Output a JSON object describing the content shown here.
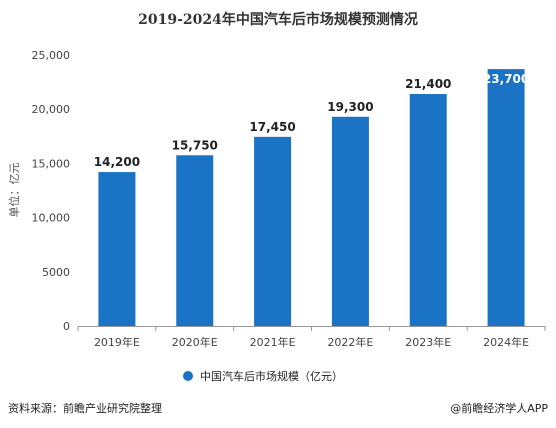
{
  "chart_data": {
    "type": "bar",
    "title": "2019-2024年中国汽车后市场规模预测情况",
    "ylabel": "单位：亿元",
    "xlabel": "",
    "categories": [
      "2019年E",
      "2020年E",
      "2021年E",
      "2022年E",
      "2023年E",
      "2024年E"
    ],
    "series": [
      {
        "name": "中国汽车后市场规模（亿元）",
        "values": [
          14200,
          15750,
          17450,
          19300,
          21400,
          23700
        ]
      }
    ],
    "data_labels": [
      "14,200",
      "15,750",
      "17,450",
      "19,300",
      "21,400",
      "23,700"
    ],
    "ylim": [
      0,
      25000
    ],
    "yticks": [
      0,
      5000,
      10000,
      15000,
      20000,
      25000
    ],
    "ytick_labels": [
      "0",
      "5000",
      "10,000",
      "15,000",
      "20,000",
      "25,000"
    ],
    "grid": false,
    "legend_position": "bottom",
    "bar_color": "#1a73c4",
    "legend_marker_color": "#1a73c4"
  },
  "footer": {
    "source": "资料来源：前瞻产业研究院整理",
    "credit": "@前瞻经济学人APP"
  }
}
